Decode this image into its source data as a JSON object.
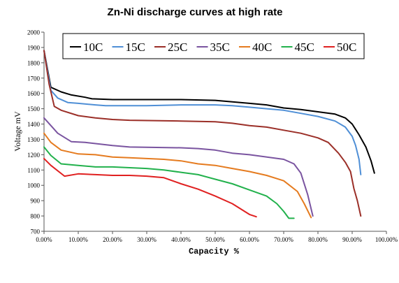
{
  "chart_data": {
    "type": "line",
    "title": "Zn-Ni discharge curves at high rate",
    "xlabel": "Capacity %",
    "ylabel": "Voltage mV",
    "xlim": [
      0,
      100
    ],
    "ylim": [
      700,
      2000
    ],
    "x_ticks": [
      "0.00%",
      "10.00%",
      "20.00%",
      "30.00%",
      "40.00%",
      "50.00%",
      "60.00%",
      "70.00%",
      "80.00%",
      "90.00%",
      "100.00%"
    ],
    "y_ticks": [
      "700",
      "800",
      "900",
      "1000",
      "1100",
      "1200",
      "1300",
      "1400",
      "1500",
      "1600",
      "1700",
      "1800",
      "1900",
      "2000"
    ],
    "grid": false,
    "legend_position": "top",
    "series": [
      {
        "name": "10C",
        "color": "#000000",
        "points": [
          [
            0,
            1880
          ],
          [
            2,
            1640
          ],
          [
            5,
            1610
          ],
          [
            8,
            1590
          ],
          [
            12,
            1575
          ],
          [
            14,
            1565
          ],
          [
            20,
            1560
          ],
          [
            30,
            1560
          ],
          [
            40,
            1560
          ],
          [
            50,
            1555
          ],
          [
            55,
            1545
          ],
          [
            60,
            1535
          ],
          [
            65,
            1525
          ],
          [
            70,
            1505
          ],
          [
            75,
            1495
          ],
          [
            80,
            1480
          ],
          [
            85,
            1465
          ],
          [
            88,
            1440
          ],
          [
            90,
            1400
          ],
          [
            92,
            1330
          ],
          [
            94,
            1250
          ],
          [
            95.5,
            1160
          ],
          [
            96.5,
            1080
          ]
        ]
      },
      {
        "name": "15C",
        "color": "#4f8fd6",
        "points": [
          [
            0,
            1880
          ],
          [
            2,
            1620
          ],
          [
            4,
            1570
          ],
          [
            7,
            1540
          ],
          [
            10,
            1535
          ],
          [
            15,
            1525
          ],
          [
            18,
            1520
          ],
          [
            30,
            1520
          ],
          [
            40,
            1525
          ],
          [
            50,
            1525
          ],
          [
            55,
            1520
          ],
          [
            60,
            1510
          ],
          [
            65,
            1500
          ],
          [
            70,
            1490
          ],
          [
            75,
            1470
          ],
          [
            80,
            1450
          ],
          [
            85,
            1420
          ],
          [
            88,
            1380
          ],
          [
            90,
            1320
          ],
          [
            91,
            1260
          ],
          [
            92,
            1170
          ],
          [
            92.5,
            1070
          ]
        ]
      },
      {
        "name": "25C",
        "color": "#9b2f28",
        "points": [
          [
            0,
            1880
          ],
          [
            1.5,
            1660
          ],
          [
            3,
            1515
          ],
          [
            5,
            1490
          ],
          [
            10,
            1455
          ],
          [
            15,
            1440
          ],
          [
            20,
            1430
          ],
          [
            25,
            1425
          ],
          [
            40,
            1420
          ],
          [
            50,
            1415
          ],
          [
            55,
            1405
          ],
          [
            60,
            1390
          ],
          [
            65,
            1380
          ],
          [
            70,
            1360
          ],
          [
            75,
            1340
          ],
          [
            80,
            1310
          ],
          [
            83,
            1280
          ],
          [
            86,
            1210
          ],
          [
            88,
            1150
          ],
          [
            89.5,
            1090
          ],
          [
            90.5,
            980
          ],
          [
            91.5,
            900
          ],
          [
            92.5,
            800
          ]
        ]
      },
      {
        "name": "35C",
        "color": "#7a54a0",
        "points": [
          [
            0,
            1440
          ],
          [
            2,
            1390
          ],
          [
            4,
            1340
          ],
          [
            8,
            1285
          ],
          [
            12,
            1280
          ],
          [
            20,
            1260
          ],
          [
            25,
            1250
          ],
          [
            40,
            1245
          ],
          [
            45,
            1240
          ],
          [
            50,
            1230
          ],
          [
            55,
            1210
          ],
          [
            60,
            1200
          ],
          [
            70,
            1170
          ],
          [
            73,
            1140
          ],
          [
            75,
            1080
          ],
          [
            77,
            940
          ],
          [
            78.5,
            800
          ]
        ]
      },
      {
        "name": "40C",
        "color": "#e57b1f",
        "points": [
          [
            0,
            1340
          ],
          [
            2,
            1280
          ],
          [
            5,
            1230
          ],
          [
            10,
            1205
          ],
          [
            15,
            1200
          ],
          [
            20,
            1185
          ],
          [
            25,
            1180
          ],
          [
            30,
            1175
          ],
          [
            35,
            1170
          ],
          [
            40,
            1160
          ],
          [
            45,
            1140
          ],
          [
            50,
            1130
          ],
          [
            55,
            1110
          ],
          [
            60,
            1090
          ],
          [
            65,
            1065
          ],
          [
            70,
            1030
          ],
          [
            74,
            960
          ],
          [
            76,
            880
          ],
          [
            78,
            790
          ]
        ]
      },
      {
        "name": "45C",
        "color": "#22b14c",
        "points": [
          [
            0,
            1250
          ],
          [
            2,
            1195
          ],
          [
            5,
            1140
          ],
          [
            10,
            1130
          ],
          [
            15,
            1120
          ],
          [
            20,
            1120
          ],
          [
            25,
            1115
          ],
          [
            30,
            1110
          ],
          [
            35,
            1100
          ],
          [
            40,
            1085
          ],
          [
            45,
            1070
          ],
          [
            50,
            1040
          ],
          [
            55,
            1010
          ],
          [
            60,
            970
          ],
          [
            65,
            930
          ],
          [
            68,
            880
          ],
          [
            70,
            830
          ],
          [
            71.5,
            785
          ],
          [
            73,
            785
          ]
        ]
      },
      {
        "name": "50C",
        "color": "#e02020",
        "points": [
          [
            0,
            1175
          ],
          [
            2,
            1130
          ],
          [
            6,
            1060
          ],
          [
            10,
            1075
          ],
          [
            15,
            1070
          ],
          [
            20,
            1065
          ],
          [
            25,
            1065
          ],
          [
            30,
            1060
          ],
          [
            35,
            1050
          ],
          [
            40,
            1010
          ],
          [
            45,
            975
          ],
          [
            50,
            930
          ],
          [
            55,
            880
          ],
          [
            60,
            810
          ],
          [
            62,
            795
          ]
        ]
      }
    ]
  }
}
